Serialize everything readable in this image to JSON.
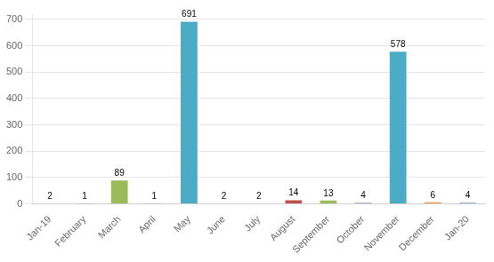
{
  "chart_data": {
    "type": "bar",
    "categories": [
      "Jan-19",
      "February",
      "March",
      "April",
      "May",
      "June",
      "July",
      "August",
      "September",
      "October",
      "November",
      "December",
      "Jan-20"
    ],
    "values": [
      2,
      1,
      89,
      1,
      691,
      2,
      2,
      14,
      13,
      4,
      578,
      6,
      4
    ],
    "colors": [
      "#4472C4",
      "#C0504D",
      "#9BBB59",
      "#8064A2",
      "#4BACC6",
      "#F79646",
      "#4472C4",
      "#C0504D",
      "#9BBB59",
      "#8064A2",
      "#4BACC6",
      "#F79646",
      "#4472C4"
    ],
    "ylim": [
      0,
      720
    ],
    "yticks": [
      0,
      100,
      200,
      300,
      400,
      500,
      600,
      700
    ],
    "grid": true,
    "data_labels": true
  }
}
